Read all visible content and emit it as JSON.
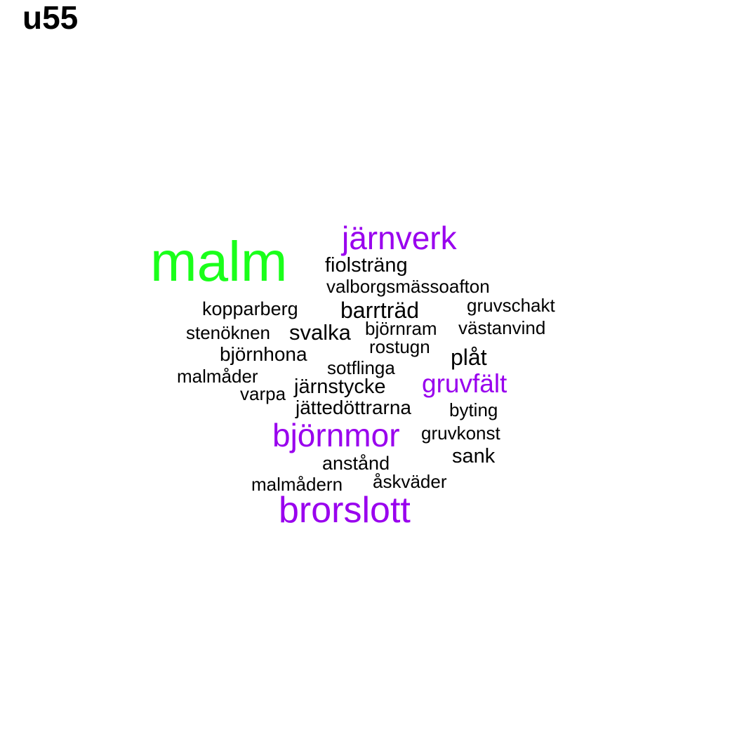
{
  "label": "u55",
  "colors": {
    "top": "#1aff1a",
    "high": "#9900ee",
    "normal": "#000000"
  },
  "words": [
    {
      "text": "malm",
      "tier": "top"
    },
    {
      "text": "järnverk",
      "tier": "high"
    },
    {
      "text": "björnmor",
      "tier": "high"
    },
    {
      "text": "brorslott",
      "tier": "high"
    },
    {
      "text": "gruvfält",
      "tier": "high"
    },
    {
      "text": "fiolsträng",
      "tier": "normal"
    },
    {
      "text": "valborgsmässoafton",
      "tier": "normal"
    },
    {
      "text": "kopparberg",
      "tier": "normal"
    },
    {
      "text": "barrträd",
      "tier": "normal"
    },
    {
      "text": "gruvschakt",
      "tier": "normal"
    },
    {
      "text": "stenöknen",
      "tier": "normal"
    },
    {
      "text": "svalka",
      "tier": "normal"
    },
    {
      "text": "björnram",
      "tier": "normal"
    },
    {
      "text": "västanvind",
      "tier": "normal"
    },
    {
      "text": "rostugn",
      "tier": "normal"
    },
    {
      "text": "björnhona",
      "tier": "normal"
    },
    {
      "text": "plåt",
      "tier": "normal"
    },
    {
      "text": "sotflinga",
      "tier": "normal"
    },
    {
      "text": "malmåder",
      "tier": "normal"
    },
    {
      "text": "varpa",
      "tier": "normal"
    },
    {
      "text": "järnstycke",
      "tier": "normal"
    },
    {
      "text": "jättedöttrarna",
      "tier": "normal"
    },
    {
      "text": "byting",
      "tier": "normal"
    },
    {
      "text": "gruvkonst",
      "tier": "normal"
    },
    {
      "text": "sank",
      "tier": "normal"
    },
    {
      "text": "anstånd",
      "tier": "normal"
    },
    {
      "text": "malmådern",
      "tier": "normal"
    },
    {
      "text": "åskväder",
      "tier": "normal"
    }
  ]
}
